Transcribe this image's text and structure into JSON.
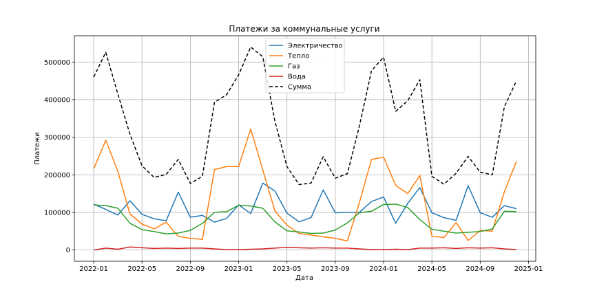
{
  "chart_data": {
    "type": "line",
    "title": "Платежи за коммунальные услуги",
    "xlabel": "Дата",
    "ylabel": "Платежи",
    "grid": true,
    "legend_placement": "top-center",
    "x_ticks": [
      "2022-01",
      "2022-05",
      "2022-09",
      "2023-01",
      "2023-05",
      "2023-09",
      "2024-01",
      "2024-05",
      "2024-09",
      "2025-01"
    ],
    "y_ticks": [
      "0",
      "100000",
      "200000",
      "300000",
      "400000",
      "500000"
    ],
    "ylim": [
      -30000,
      570000
    ],
    "x": [
      "2022-01",
      "2022-02",
      "2022-03",
      "2022-04",
      "2022-05",
      "2022-06",
      "2022-07",
      "2022-08",
      "2022-09",
      "2022-10",
      "2022-11",
      "2022-12",
      "2023-01",
      "2023-02",
      "2023-03",
      "2023-04",
      "2023-05",
      "2023-06",
      "2023-07",
      "2023-08",
      "2023-09",
      "2023-10",
      "2023-11",
      "2023-12",
      "2024-01",
      "2024-02",
      "2024-03",
      "2024-04",
      "2024-05",
      "2024-06",
      "2024-07",
      "2024-08",
      "2024-09",
      "2024-10",
      "2024-11",
      "2024-12"
    ],
    "series": [
      {
        "name": "Электричество",
        "color": "#1f77b4",
        "dash": false,
        "values": [
          122000,
          108000,
          93000,
          131000,
          95000,
          83000,
          78000,
          154000,
          87000,
          92000,
          74000,
          84000,
          120000,
          97000,
          178000,
          157000,
          98000,
          75000,
          86000,
          160000,
          99000,
          100000,
          100000,
          129000,
          141000,
          71000,
          124000,
          166000,
          99000,
          86000,
          79000,
          171000,
          99000,
          87000,
          118000,
          110000
        ]
      },
      {
        "name": "Тепло",
        "color": "#ff7f0e",
        "dash": false,
        "values": [
          216000,
          292000,
          209000,
          96000,
          69000,
          56000,
          74000,
          36000,
          31000,
          28000,
          214000,
          222000,
          222000,
          322000,
          213000,
          104000,
          66000,
          44000,
          40000,
          35000,
          31000,
          24000,
          126000,
          241000,
          247000,
          172000,
          150000,
          198000,
          37000,
          33000,
          73000,
          25000,
          52000,
          50000,
          155000,
          236000
        ]
      },
      {
        "name": "Газ",
        "color": "#2ca02c",
        "dash": false,
        "values": [
          120000,
          118000,
          111000,
          71000,
          54000,
          49000,
          43000,
          45000,
          52000,
          71000,
          100000,
          102000,
          119000,
          117000,
          111000,
          75000,
          51000,
          48000,
          44000,
          45000,
          53000,
          72000,
          99000,
          103000,
          121000,
          122000,
          113000,
          81000,
          55000,
          50000,
          45000,
          47000,
          49000,
          56000,
          103000,
          102000
        ]
      },
      {
        "name": "Вода",
        "color": "#d62728",
        "dash": false,
        "values": [
          0,
          5000,
          2000,
          8000,
          6000,
          4000,
          5000,
          4000,
          5000,
          5000,
          3000,
          1000,
          1000,
          2000,
          3000,
          5000,
          7000,
          6000,
          5000,
          6000,
          5000,
          5000,
          3000,
          1000,
          1000,
          2000,
          1000,
          5000,
          5000,
          6000,
          4000,
          6000,
          5000,
          6000,
          3000,
          1000
        ]
      },
      {
        "name": "Сумма",
        "color": "#000000",
        "dash": true,
        "values": [
          460000,
          526000,
          415000,
          308000,
          224000,
          193000,
          201000,
          241000,
          177000,
          196000,
          393000,
          413000,
          466000,
          540000,
          514000,
          343000,
          222000,
          174000,
          178000,
          248000,
          191000,
          203000,
          330000,
          477000,
          513000,
          369000,
          397000,
          453000,
          196000,
          175000,
          204000,
          249000,
          207000,
          200000,
          381000,
          450000
        ]
      }
    ]
  }
}
